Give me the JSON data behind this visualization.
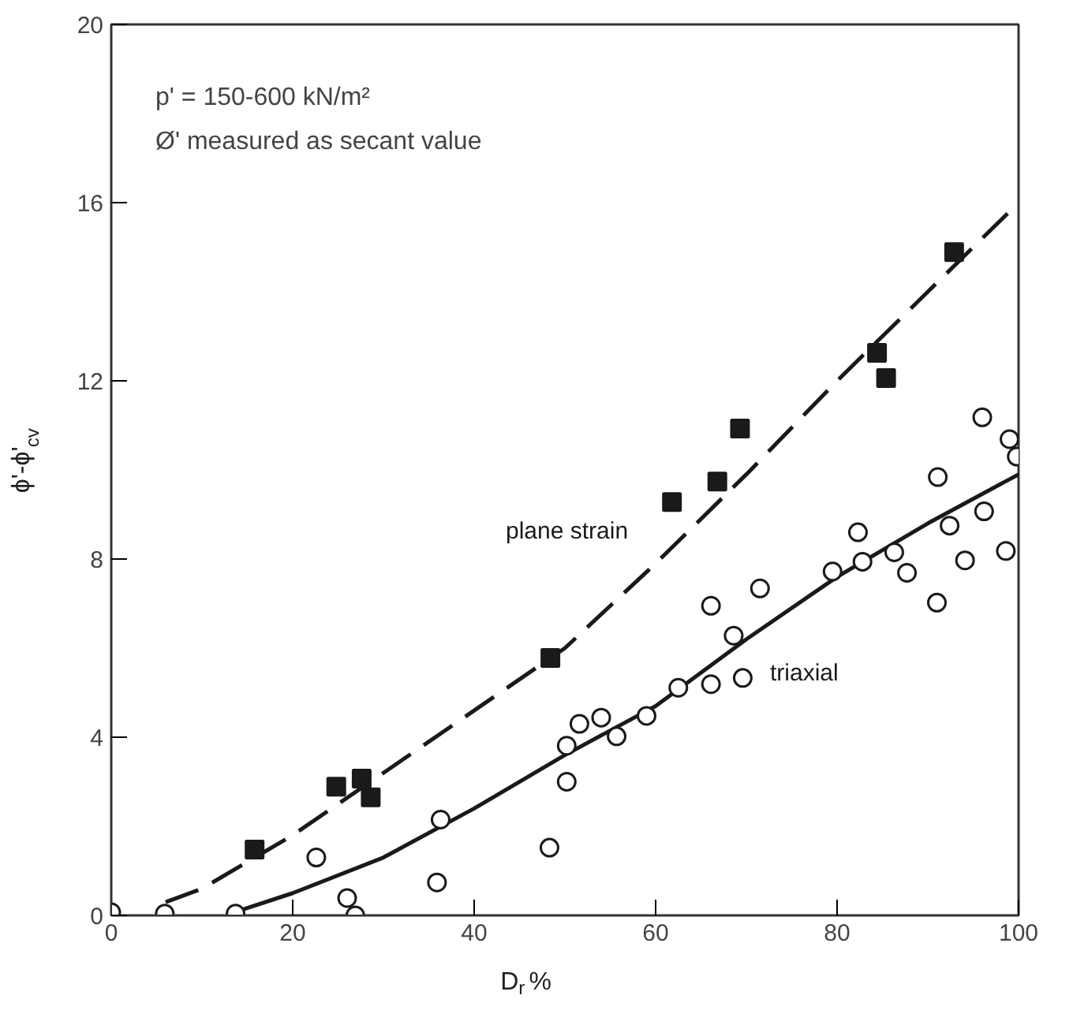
{
  "chart_data": {
    "type": "scatter",
    "xlabel": "D$_{r}$ %",
    "ylabel": "ϕ'-ϕ'$_{cv}$",
    "annotations": [
      "p' = 150-600 kN/m²",
      "Ø' measured as secant value"
    ],
    "xlim": [
      0,
      100
    ],
    "ylim": [
      0,
      20
    ],
    "xticks": [
      0,
      20,
      40,
      60,
      80,
      100
    ],
    "yticks": [
      0,
      4,
      8,
      12,
      16,
      20
    ],
    "grid": false,
    "legend": false,
    "series": [
      {
        "type": "line",
        "name": "plane strain",
        "color": "#1a1a1a",
        "line_style": "dashed",
        "marker": "none",
        "x": [
          6,
          10,
          20,
          30,
          40,
          50,
          60,
          70,
          80,
          90,
          100
        ],
        "values": [
          0.3,
          0.6,
          1.8,
          3.2,
          4.6,
          6.0,
          7.9,
          9.9,
          12.0,
          14.0,
          16.0
        ]
      },
      {
        "type": "line",
        "name": "triaxial",
        "color": "#1a1a1a",
        "line_style": "solid",
        "marker": "none",
        "x": [
          14,
          20,
          30,
          40,
          50,
          60,
          70,
          80,
          90,
          100
        ],
        "values": [
          0.1,
          0.5,
          1.3,
          2.4,
          3.6,
          4.7,
          6.2,
          7.6,
          8.8,
          9.9
        ]
      },
      {
        "color": "#1a1a1a",
        "marker": "square",
        "x": [
          15.8,
          24.8,
          27.6,
          28.6,
          48.4,
          61.8,
          66.8,
          69.3,
          84.4,
          85.4,
          92.9
        ],
        "values": [
          1.48,
          2.89,
          3.07,
          2.65,
          5.78,
          9.28,
          9.74,
          10.93,
          12.63,
          12.06,
          14.89
        ]
      },
      {
        "color": "#1a1a1a",
        "marker": "circle",
        "x": [
          0,
          5.9,
          13.7,
          22.6,
          26.0,
          26.9,
          36.3,
          35.9,
          48.3,
          50.2,
          50.2,
          51.6,
          54.0,
          55.7,
          59.0,
          62.5,
          66.1,
          69.6,
          68.6,
          66.1,
          71.5,
          79.5,
          82.8,
          82.3,
          86.3,
          87.7,
          91.0,
          91.1,
          92.4,
          94.1,
          96.2,
          96.0,
          98.6,
          99.0,
          99.8
        ],
        "values": [
          0.07,
          0.04,
          0.04,
          1.3,
          0.39,
          0.0,
          2.15,
          0.74,
          1.52,
          3.0,
          3.81,
          4.3,
          4.44,
          4.02,
          4.48,
          5.11,
          5.19,
          5.33,
          6.28,
          6.95,
          7.34,
          7.72,
          7.94,
          8.6,
          8.15,
          7.69,
          7.02,
          9.84,
          8.75,
          7.97,
          9.07,
          11.18,
          8.18,
          10.69,
          10.3
        ]
      }
    ]
  }
}
